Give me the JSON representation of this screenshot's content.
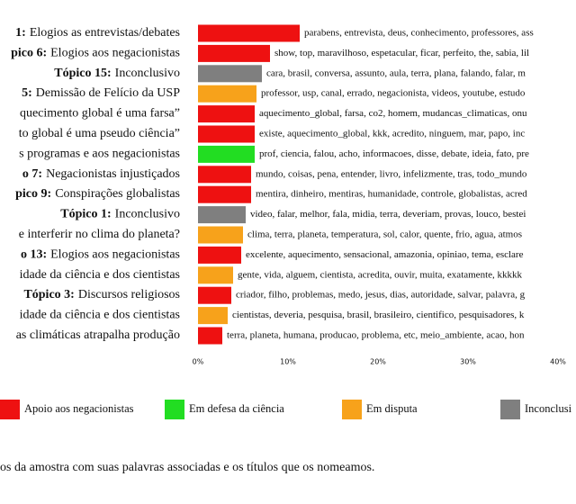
{
  "chart_data": {
    "type": "barh",
    "category_numbers": [
      "1:",
      "pico 6:",
      "Tópico 15:",
      "5:",
      null,
      null,
      null,
      "o 7:",
      "pico 9:",
      "Tópico 1:",
      null,
      "o 13:",
      null,
      "Tópico 3:",
      null,
      null
    ],
    "categories": [
      "Elogios as entrevistas/debates",
      "Elogios aos negacionistas",
      "Inconclusivo",
      "Demissão de Felício da USP",
      "quecimento global é uma farsa”",
      "to global é uma pseudo ciência”",
      "s programas e aos negacionistas",
      "Negacionistas injustiçados",
      "Conspirações globalistas",
      "Inconclusivo",
      "e interferir no clima do planeta?",
      "Elogios aos negacionistas",
      "idade da ciência e dos cientistas",
      "Discursos religiosos",
      "idade da ciência e dos cientistas",
      "as climáticas atrapalha produção"
    ],
    "words": [
      "parabens, entrevista, deus, conhecimento, professores, ass",
      "show, top, maravilhoso, espetacular, ficar, perfeito, the, sabia, lil",
      "cara, brasil, conversa, assunto, aula, terra, plana, falando, falar, m",
      "professor, usp, canal, errado, negacionista, videos, youtube, estudo",
      "aquecimento_global, farsa, co2, homem, mudancas_climaticas, onu",
      "existe, aquecimento_global, kkk, acredito, ninguem, mar, papo, inc",
      "prof, ciencia, falou, acho, informacoes, disse, debate, ideia, fato, pre",
      "mundo, coisas, pena, entender, livro, infelizmente, tras, todo_mundo",
      "mentira, dinheiro, mentiras, humanidade, controle, globalistas, acred",
      "video, falar, melhor, fala, midia, terra, deveriam, provas, louco, bestei",
      "clima, terra, planeta, temperatura, sol, calor, quente, frio, agua, atmos",
      "excelente, aquecimento, sensacional, amazonia, opiniao, tema, esclare",
      "gente, vida, alguem, cientista, acredita, ouvir, muita, exatamente, kkkkk",
      "criador, filho, problemas, medo, jesus, dias, autoridade, salvar, palavra, g",
      "cientistas, deveria, pesquisa, brasil, brasileiro, cientifico, pesquisadores, k",
      "terra, planeta, humana, producao, problema, etc, meio_ambiente, acao, hon"
    ],
    "series": [
      {
        "name": "Apoio aos negacionistas",
        "color": "#ee1111",
        "values": [
          11.3,
          8.0,
          null,
          null,
          6.3,
          6.3,
          null,
          5.9,
          5.9,
          null,
          null,
          4.8,
          null,
          3.7,
          null,
          2.7
        ]
      },
      {
        "name": "Em defesa da ciência",
        "color": "#22dd22",
        "values": [
          null,
          null,
          null,
          null,
          null,
          null,
          6.3,
          null,
          null,
          null,
          null,
          null,
          null,
          null,
          null,
          null
        ]
      },
      {
        "name": "Em disputa",
        "color": "#f7a21b",
        "values": [
          null,
          null,
          null,
          6.5,
          null,
          null,
          null,
          null,
          null,
          null,
          5.0,
          null,
          3.9,
          null,
          3.3,
          null
        ]
      },
      {
        "name": "Inconclusi",
        "color": "#7f7f7f",
        "values": [
          null,
          null,
          7.1,
          null,
          null,
          null,
          null,
          null,
          null,
          5.3,
          null,
          null,
          null,
          null,
          null,
          null
        ]
      }
    ],
    "xlim": [
      0,
      40
    ],
    "xticks": [
      {
        "value": 0,
        "label": "0%"
      },
      {
        "value": 10,
        "label": "10%"
      },
      {
        "value": 20,
        "label": "20%"
      },
      {
        "value": 30,
        "label": "30%"
      },
      {
        "value": 40,
        "label": "40%"
      }
    ]
  },
  "caption": "os da amostra com suas palavras associadas e os títulos que os nomeamos."
}
